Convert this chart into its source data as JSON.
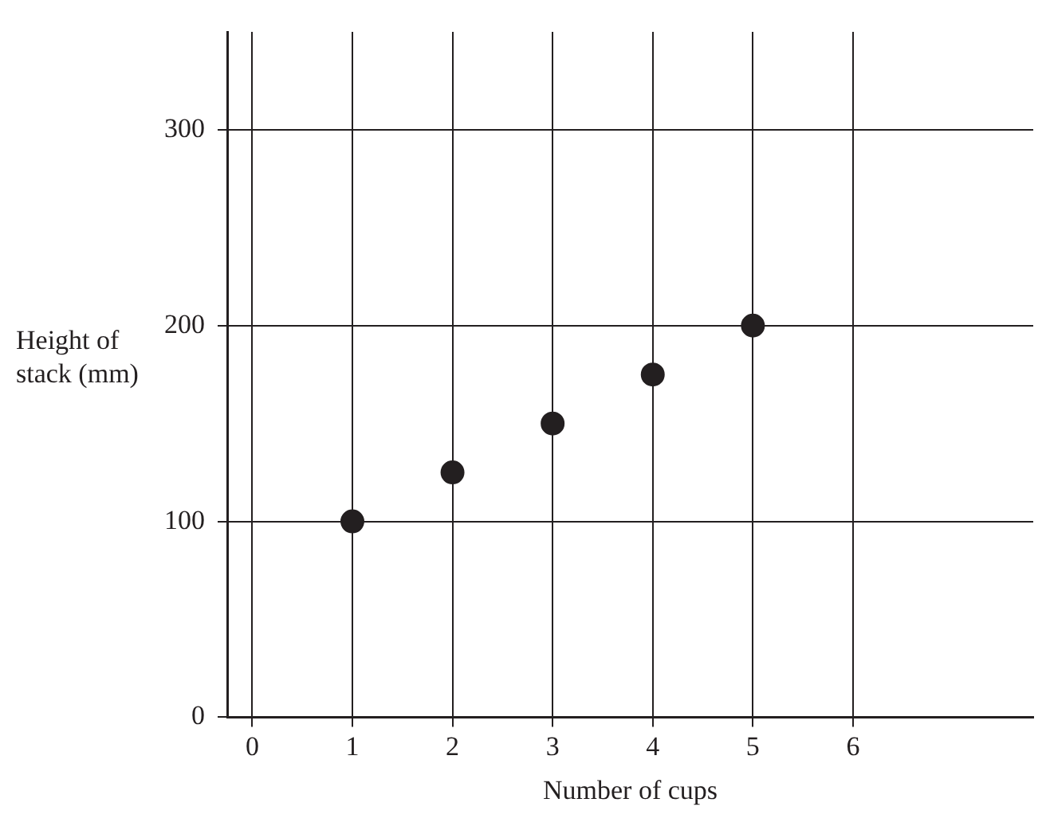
{
  "chart_data": {
    "type": "scatter",
    "xlabel": "Number of cups",
    "ylabel": "Height of stack (mm)",
    "x": [
      1,
      2,
      3,
      4,
      5
    ],
    "values": [
      100,
      125,
      150,
      175,
      200
    ],
    "color": "#231f20",
    "marker": "circle",
    "xlim": [
      -0.25,
      7.8
    ],
    "xticks": [
      0,
      1,
      2,
      3,
      4,
      5,
      6
    ],
    "ylim": [
      0,
      350
    ],
    "yticks": [
      0,
      100,
      200,
      300
    ],
    "grid": true,
    "legend": false
  }
}
